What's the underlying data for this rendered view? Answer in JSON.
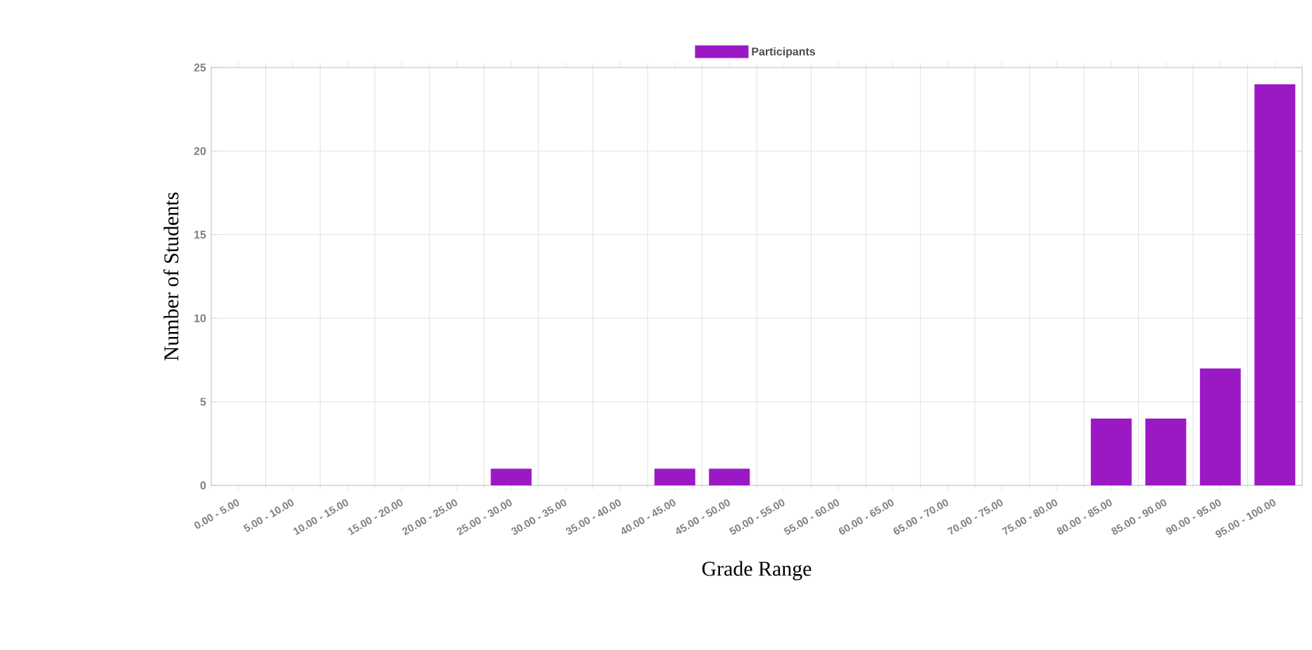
{
  "chart_data": {
    "type": "bar",
    "xlabel": "Grade Range",
    "ylabel": "Number of Students",
    "categories": [
      "0.00 - 5.00",
      "5.00 - 10.00",
      "10.00 - 15.00",
      "15.00 - 20.00",
      "20.00 - 25.00",
      "25.00 - 30.00",
      "30.00 - 35.00",
      "35.00 - 40.00",
      "40.00 - 45.00",
      "45.00 - 50.00",
      "50.00 - 55.00",
      "55.00 - 60.00",
      "60.00 - 65.00",
      "65.00 - 70.00",
      "70.00 - 75.00",
      "75.00 - 80.00",
      "80.00 - 85.00",
      "85.00 - 90.00",
      "90.00 - 95.00",
      "95.00 - 100.00"
    ],
    "series": [
      {
        "name": "Participants",
        "color": "#9b19c4",
        "values": [
          0,
          0,
          0,
          0,
          0,
          1,
          0,
          0,
          1,
          1,
          0,
          0,
          0,
          0,
          0,
          0,
          4,
          4,
          7,
          24
        ]
      }
    ],
    "ylim": [
      0,
      25
    ],
    "yticks": [
      0,
      5,
      10,
      15,
      20,
      25
    ],
    "grid": true,
    "legend": "top"
  }
}
